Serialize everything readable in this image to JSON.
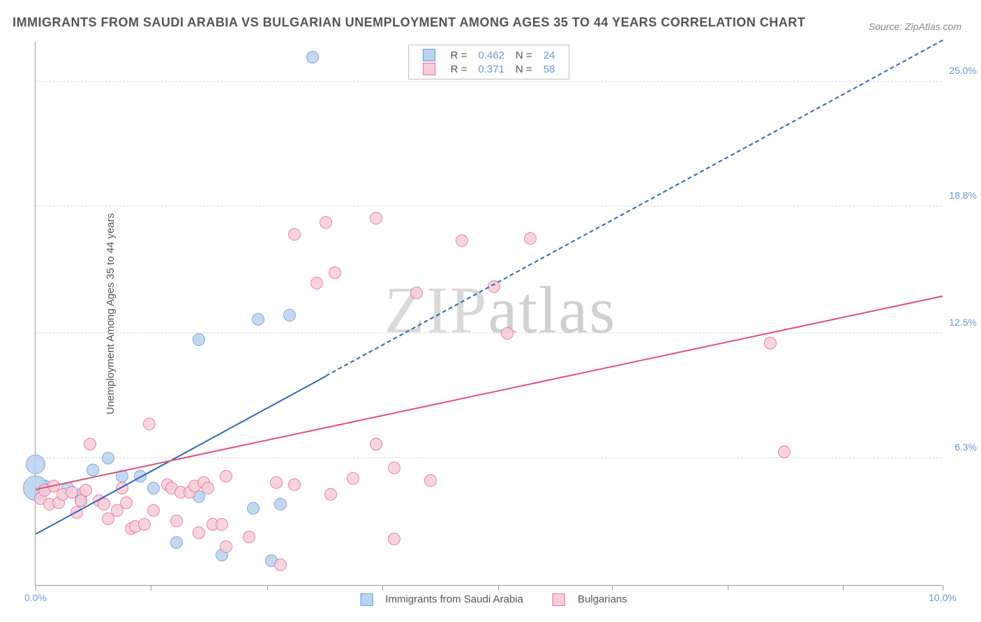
{
  "title": "IMMIGRANTS FROM SAUDI ARABIA VS BULGARIAN UNEMPLOYMENT AMONG AGES 35 TO 44 YEARS CORRELATION CHART",
  "source": "Source: ZipAtlas.com",
  "ylabel": "Unemployment Among Ages 35 to 44 years",
  "watermark_a": "ZIP",
  "watermark_b": "atlas",
  "colors": {
    "blue_fill": "#b9d3ef",
    "blue_stroke": "#6a9ad4",
    "blue_line": "#2f66c4",
    "pink_fill": "#f7cdd9",
    "pink_stroke": "#e66f94",
    "pink_line": "#e0507d",
    "grid": "#d8d8d8",
    "axis": "#999999",
    "text": "#555555",
    "tick_text": "#6a9ad4"
  },
  "chart": {
    "type": "scatter",
    "xlim": [
      0,
      10
    ],
    "ylim": [
      0,
      27
    ],
    "xtick_positions": [
      0,
      1.27,
      2.55,
      3.82,
      5.1,
      6.35,
      7.63,
      8.9,
      10
    ],
    "xtick_labels": {
      "0": "0.0%",
      "10": "10.0%"
    },
    "ytick_positions": [
      6.3,
      12.5,
      18.8,
      25.0
    ],
    "ytick_labels": [
      "6.3%",
      "12.5%",
      "18.8%",
      "25.0%"
    ],
    "point_radius_default": 9,
    "series": [
      {
        "name": "Immigrants from Saudi Arabia",
        "key": "blue",
        "R": "0.462",
        "N": "24",
        "points": [
          [
            0.05,
            4.6
          ],
          [
            0.1,
            4.9
          ],
          [
            0.35,
            4.8
          ],
          [
            0.5,
            4.5
          ],
          [
            0.5,
            4.2
          ],
          [
            0.63,
            5.7
          ],
          [
            0.8,
            6.3
          ],
          [
            0.95,
            5.4
          ],
          [
            1.15,
            5.4
          ],
          [
            1.3,
            4.8
          ],
          [
            1.55,
            2.1
          ],
          [
            1.8,
            4.4
          ],
          [
            1.8,
            12.2
          ],
          [
            2.05,
            1.5
          ],
          [
            2.4,
            3.8
          ],
          [
            2.45,
            13.2
          ],
          [
            2.6,
            1.2
          ],
          [
            2.7,
            4.0
          ],
          [
            2.8,
            13.4
          ],
          [
            3.05,
            26.2
          ],
          [
            0.0,
            4.8,
            18
          ],
          [
            0.0,
            6.0,
            14
          ]
        ],
        "trend": {
          "x1": 0.0,
          "y1": 2.5,
          "x2": 10.0,
          "y2": 27.0,
          "solid_until_x": 3.2
        }
      },
      {
        "name": "Bulgarians",
        "key": "pink",
        "R": "0.371",
        "N": "58",
        "points": [
          [
            0.05,
            4.3
          ],
          [
            0.1,
            4.7
          ],
          [
            0.15,
            4.0
          ],
          [
            0.2,
            4.9
          ],
          [
            0.25,
            4.1
          ],
          [
            0.3,
            4.5
          ],
          [
            0.4,
            4.6
          ],
          [
            0.45,
            3.6
          ],
          [
            0.5,
            4.2
          ],
          [
            0.55,
            4.7
          ],
          [
            0.6,
            7.0
          ],
          [
            0.7,
            4.2
          ],
          [
            0.75,
            4.0
          ],
          [
            0.8,
            3.3
          ],
          [
            0.9,
            3.7
          ],
          [
            0.95,
            4.8
          ],
          [
            1.0,
            4.1
          ],
          [
            1.05,
            2.8
          ],
          [
            1.1,
            2.9
          ],
          [
            1.2,
            3.0
          ],
          [
            1.25,
            8.0
          ],
          [
            1.3,
            3.7
          ],
          [
            1.45,
            5.0
          ],
          [
            1.5,
            4.8
          ],
          [
            1.55,
            3.2
          ],
          [
            1.6,
            4.6
          ],
          [
            1.7,
            4.6
          ],
          [
            1.75,
            4.9
          ],
          [
            1.8,
            2.6
          ],
          [
            1.85,
            5.1
          ],
          [
            1.9,
            4.8
          ],
          [
            1.95,
            3.0
          ],
          [
            2.05,
            3.0
          ],
          [
            2.1,
            5.4
          ],
          [
            2.1,
            1.9
          ],
          [
            2.35,
            2.4
          ],
          [
            2.65,
            5.1
          ],
          [
            2.7,
            1.0
          ],
          [
            2.85,
            5.0
          ],
          [
            2.85,
            17.4
          ],
          [
            3.1,
            15.0
          ],
          [
            3.2,
            18.0
          ],
          [
            3.25,
            4.5
          ],
          [
            3.3,
            15.5
          ],
          [
            3.5,
            5.3
          ],
          [
            3.75,
            18.2
          ],
          [
            3.75,
            7.0
          ],
          [
            3.95,
            2.3
          ],
          [
            3.95,
            5.8
          ],
          [
            4.2,
            14.5
          ],
          [
            4.35,
            5.2
          ],
          [
            4.7,
            17.1
          ],
          [
            5.05,
            14.8
          ],
          [
            5.2,
            12.5
          ],
          [
            5.45,
            17.2
          ],
          [
            8.1,
            12.0
          ],
          [
            8.25,
            6.6
          ]
        ],
        "trend": {
          "x1": 0.0,
          "y1": 4.7,
          "x2": 10.0,
          "y2": 14.3,
          "solid_until_x": 10.0
        }
      }
    ]
  },
  "legend_top": {
    "r_label": "R =",
    "n_label": "N ="
  },
  "legend_bottom_series": [
    "Immigrants from Saudi Arabia",
    "Bulgarians"
  ]
}
